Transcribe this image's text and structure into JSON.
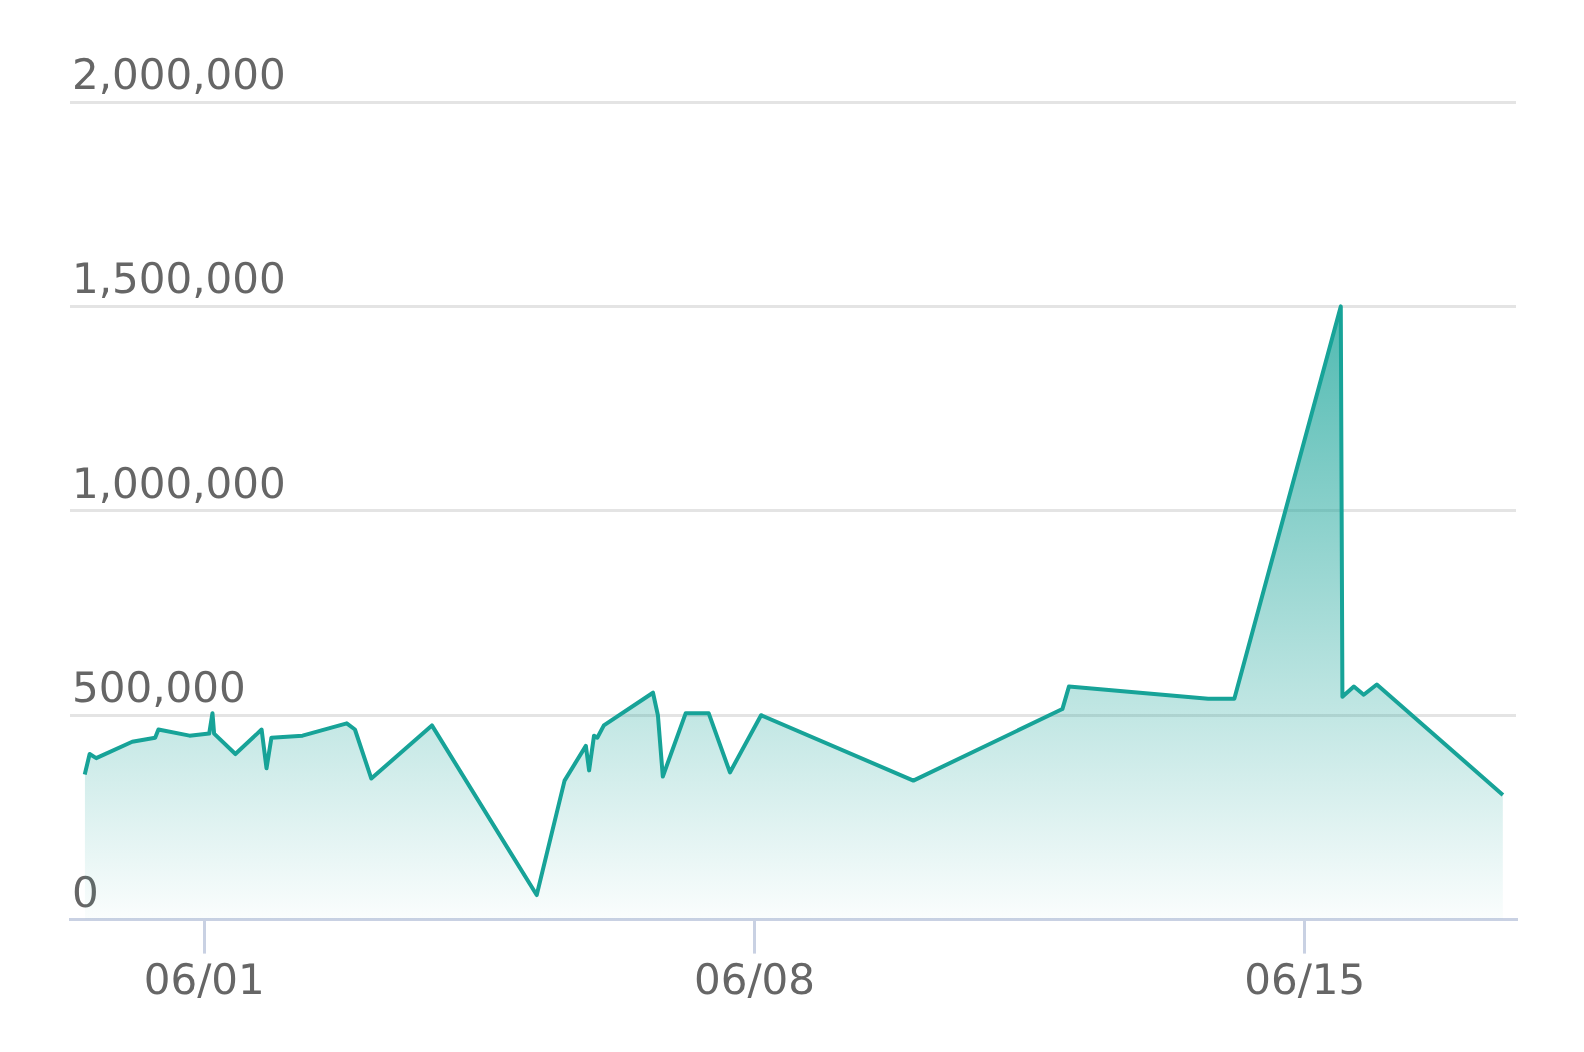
{
  "chart_data": {
    "type": "area",
    "color": "#17a398",
    "x": [
      "--05-30T11:30",
      "--05-30T13:00",
      "--05-30T15:00",
      "--05-31T02:00",
      "--05-31T09:00",
      "--05-31T10:00",
      "--05-31T19:30",
      "--06-01T01:30",
      "--06-01T02:30",
      "--06-01T03:00",
      "--06-01T09:30",
      "--06-01T17:30",
      "--06-01T19:00",
      "--06-01T20:30",
      "--06-02T06:00",
      "--06-02T19:30",
      "--06-02T22:00",
      "--06-03T03:00",
      "--06-03T21:30",
      "--06-05T05:30",
      "--06-05T14:00",
      "--06-05T20:30",
      "--06-05T21:30",
      "--06-05T23:00",
      "--06-06T00:00",
      "--06-06T02:00",
      "--06-06T17:00",
      "--06-06T18:30",
      "--06-06T20:00",
      "--06-07T03:00",
      "--06-07T10:00",
      "--06-07T16:30",
      "--06-08T02:00",
      "--06-10T00:30",
      "--06-11T22:00",
      "--06-12T00:00",
      "--06-13T18:30",
      "--06-14T02:30",
      "--06-15T11:00",
      "--06-15T11:30",
      "--06-15T15:00",
      "--06-15T18:00",
      "--06-15T22:00",
      "--06-17T12:30"
    ],
    "values": [
      355000,
      405000,
      395000,
      435000,
      445000,
      465000,
      450000,
      455000,
      505000,
      455000,
      405000,
      465000,
      370000,
      445000,
      450000,
      480000,
      465000,
      345000,
      475000,
      60000,
      340000,
      425000,
      365000,
      450000,
      445000,
      475000,
      555000,
      500000,
      350000,
      505000,
      505000,
      360000,
      500000,
      340000,
      515000,
      570000,
      540000,
      540000,
      1500000,
      545000,
      570000,
      550000,
      575000,
      305000
    ],
    "xlim": [
      "--05-30T07:00",
      "--06-17T16:30"
    ],
    "xticks": [
      {
        "value": "--06-01",
        "label": "06/01"
      },
      {
        "value": "--06-08",
        "label": "06/08"
      },
      {
        "value": "--06-15",
        "label": "06/15"
      }
    ],
    "ylim": [
      0,
      2000000
    ],
    "yticks": [
      0,
      {
        "value": 500000,
        "label": "500,000"
      },
      {
        "value": 1000000,
        "label": "1,000,000"
      },
      {
        "value": 1500000,
        "label": "1,500,000"
      },
      {
        "value": 2000000,
        "label": "2,000,000"
      }
    ],
    "grid": "y",
    "marker": "none"
  }
}
